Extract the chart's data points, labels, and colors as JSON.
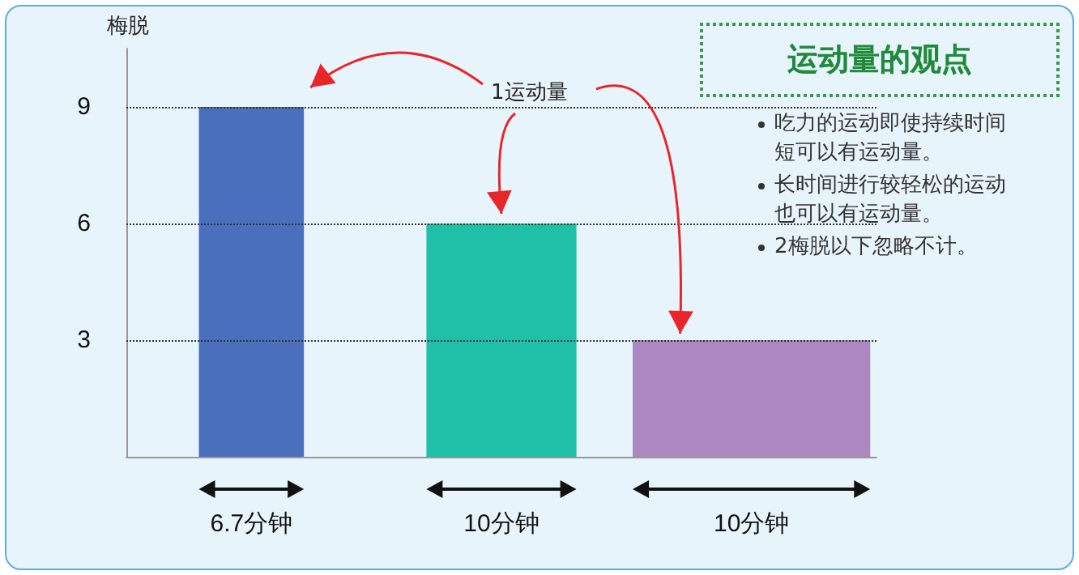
{
  "chart_data": {
    "type": "bar",
    "ylabel": "梅脱",
    "categories": [
      "6.7分钟",
      "10分钟",
      "10分钟"
    ],
    "values": [
      9,
      6,
      3
    ],
    "colors": [
      "#4a6fbd",
      "#1fbfa8",
      "#ab88c0"
    ],
    "ylim": [
      0,
      10.5
    ],
    "yticks": [
      3,
      6,
      9
    ],
    "grid": false,
    "ref_lines": [
      {
        "axis": "y",
        "value": 9,
        "line_style": "dotted",
        "color": "#333333"
      },
      {
        "axis": "y",
        "value": 6,
        "line_style": "dotted",
        "color": "#333333"
      },
      {
        "axis": "y",
        "value": 3,
        "line_style": "dotted",
        "color": "#333333"
      }
    ],
    "annotations": [
      "1运动量",
      "运动量的观点",
      "吃力的运动即使持续时间短可以有运动量。",
      "长时间进行较轻松的运动也可以有运动量。",
      "2梅脱以下忽略不计。"
    ]
  }
}
